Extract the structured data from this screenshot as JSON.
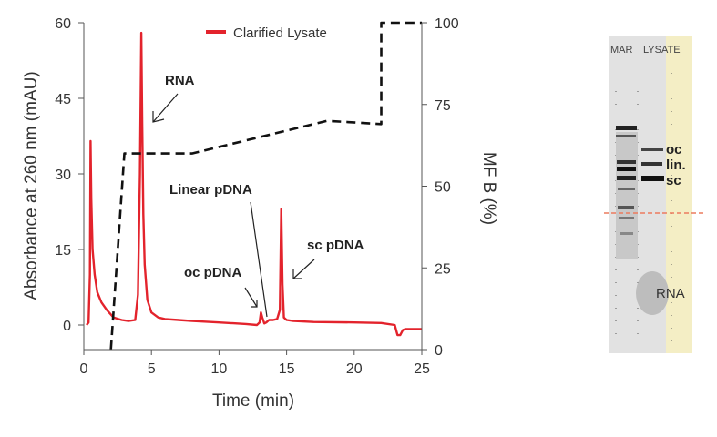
{
  "chart_data": {
    "type": "line",
    "xlabel": "Time (min)",
    "ylabel": "Absorbance at 260 nm (mAU)",
    "y2label": "MF B (%)",
    "xlim": [
      0,
      25
    ],
    "ylim": [
      -5,
      60
    ],
    "y2lim": [
      0,
      100
    ],
    "xticks": [
      0,
      5,
      10,
      15,
      20,
      25
    ],
    "yticks": [
      0,
      15,
      30,
      45,
      60
    ],
    "y2ticks": [
      0,
      25,
      50,
      75,
      100
    ],
    "grid": false,
    "legend_position": "top-center",
    "series": [
      {
        "name": "Clarified Lysate",
        "color": "#e3232c",
        "axis": "left",
        "x": [
          0.2,
          0.35,
          0.45,
          0.5,
          0.55,
          0.65,
          0.8,
          1.0,
          1.3,
          1.7,
          2.2,
          2.8,
          3.3,
          3.8,
          4.0,
          4.15,
          4.25,
          4.32,
          4.4,
          4.5,
          4.7,
          5.0,
          5.5,
          6.0,
          7.0,
          8.0,
          10.0,
          12.0,
          12.8,
          13.0,
          13.1,
          13.2,
          13.35,
          13.5,
          13.7,
          14.0,
          14.3,
          14.5,
          14.6,
          14.7,
          14.8,
          15.0,
          15.5,
          17.0,
          20.0,
          22.0,
          23.0,
          23.2,
          23.4,
          23.6,
          23.8,
          24.5,
          25.0
        ],
        "y": [
          0.0,
          0.5,
          10.0,
          36.5,
          25.0,
          15.0,
          10.0,
          6.5,
          4.5,
          3.0,
          1.5,
          1.0,
          0.8,
          1.0,
          6.0,
          30.0,
          58.0,
          40.0,
          22.0,
          12.0,
          5.0,
          2.5,
          1.5,
          1.2,
          1.0,
          0.8,
          0.5,
          0.2,
          0.0,
          0.5,
          2.5,
          1.5,
          0.3,
          0.5,
          1.0,
          1.0,
          1.2,
          3.0,
          23.0,
          8.0,
          1.5,
          1.0,
          0.8,
          0.6,
          0.5,
          0.4,
          0.0,
          -2.0,
          -2.0,
          -1.0,
          -0.8,
          -0.8,
          -0.8
        ]
      },
      {
        "name": "MF B (%)",
        "color": "#111111",
        "dashed": true,
        "axis": "right",
        "x": [
          2.0,
          3.0,
          5.0,
          8.0,
          18.0,
          22.0,
          22.0,
          25.0
        ],
        "y": [
          0,
          60,
          60,
          60,
          70,
          69,
          100,
          100
        ]
      }
    ],
    "annotations": [
      {
        "text": "RNA",
        "x": 4.4,
        "y": 46
      },
      {
        "text": "Linear pDNA",
        "x": 13.7,
        "y": 1.5
      },
      {
        "text": "oc pDNA",
        "x": 12.9,
        "y": 2.5
      },
      {
        "text": "sc pDNA",
        "x": 15.0,
        "y": 10
      }
    ]
  },
  "gel": {
    "lane_labels": [
      "MAR",
      "LYSATE"
    ],
    "band_labels": [
      "oc",
      "lin.",
      "sc",
      "RNA"
    ]
  }
}
